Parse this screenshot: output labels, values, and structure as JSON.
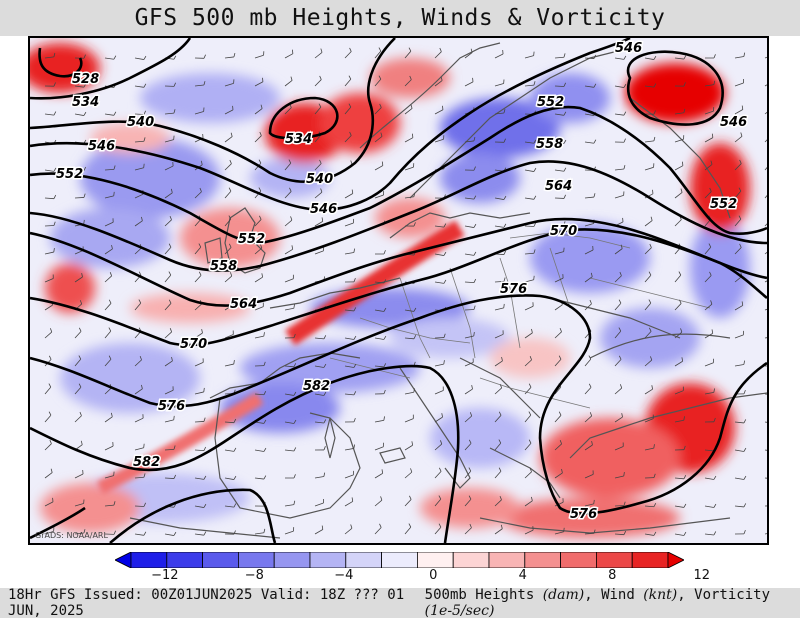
{
  "title": "GFS 500 mb Heights, Winds & Vorticity",
  "credit": "GrADS: NOAA/ARL",
  "footer": {
    "issued": "18Hr GFS Issued: 00Z01JUN2025 Valid: 18Z ??? 01 JUN, 2025",
    "legend_prefix": "500mb Heights",
    "legend_heights_unit": "(dam)",
    "legend_wind": "Wind",
    "legend_wind_unit": "(knt)",
    "legend_vort": "Vorticity",
    "legend_vort_unit": "(1e-5/sec)"
  },
  "colorbar": {
    "colors": [
      "#0000e6",
      "#1e1ee8",
      "#3c3cea",
      "#5a5aec",
      "#7878ee",
      "#9696f0",
      "#b4b4f4",
      "#d4d4f8",
      "#ececfc",
      "#fff0f0",
      "#fcd4d4",
      "#f8b4b4",
      "#f49090",
      "#f06c6c",
      "#ec4848",
      "#e82424",
      "#e60000"
    ],
    "tick_labels": [
      "−12",
      "−8",
      "−4",
      "0",
      "4",
      "8",
      "12"
    ]
  },
  "contour_labels": [
    "528",
    "534",
    "534",
    "540",
    "540",
    "546",
    "546",
    "546",
    "546",
    "552",
    "552",
    "552",
    "552",
    "558",
    "558",
    "564",
    "564",
    "570",
    "570",
    "576",
    "576",
    "576",
    "582",
    "582"
  ]
}
